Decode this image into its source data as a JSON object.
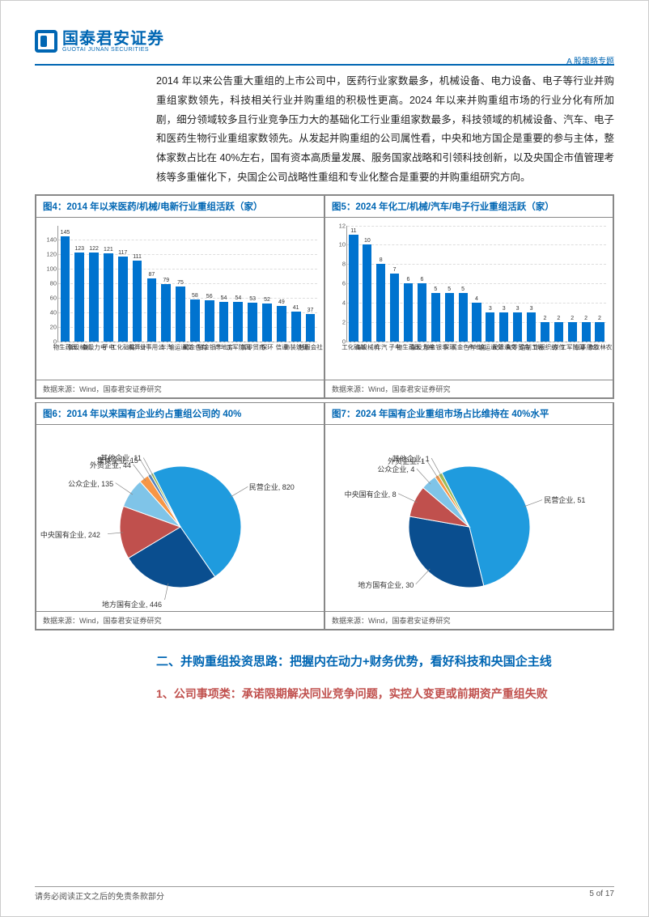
{
  "header": {
    "logo_cn": "国泰君安证券",
    "logo_en": "GUOTAI JUNAN SECURITIES",
    "doc_tag": "A 股策略专题"
  },
  "body_para": "2014 年以来公告重大重组的上市公司中，医药行业家数最多，机械设备、电力设备、电子等行业并购重组家数领先，科技相关行业并购重组的积极性更高。2024 年以来并购重组市场的行业分化有所加剧，细分领域较多且行业竞争压力大的基础化工行业重组家数最多，科技领域的机械设备、汽车、电子和医药生物行业重组家数领先。从发起并购重组的公司属性看，中央和地方国企是重要的参与主体，整体家数占比在 40%左右，国有资本高质量发展、服务国家战略和引领科技创新，以及央国企市值管理考核等多重催化下，央国企公司战略性重组和专业化整合是重要的并购重组研究方向。",
  "fig4": {
    "title": "图4：2014 年以来医药/机械/电新行业重组活跃（家）",
    "ylim": 160,
    "yticks": [
      0,
      20,
      40,
      60,
      80,
      100,
      120,
      140
    ],
    "bars": [
      {
        "l": "医药生物",
        "v": 145
      },
      {
        "l": "机械设备",
        "v": 123
      },
      {
        "l": "电力设备",
        "v": 122
      },
      {
        "l": "电子",
        "v": 121
      },
      {
        "l": "基础化工",
        "v": 117
      },
      {
        "l": "计算机",
        "v": 111
      },
      {
        "l": "公用事业",
        "v": 87
      },
      {
        "l": "汽车",
        "v": 79
      },
      {
        "l": "交通运输",
        "v": 75
      },
      {
        "l": "有色金属",
        "v": 58
      },
      {
        "l": "非银金融",
        "v": 56
      },
      {
        "l": "房地产",
        "v": 54
      },
      {
        "l": "国防军工",
        "v": 54
      },
      {
        "l": "商贸零售",
        "v": 53
      },
      {
        "l": "环保",
        "v": 52
      },
      {
        "l": "通信",
        "v": 49
      },
      {
        "l": "建筑装饰",
        "v": 41
      },
      {
        "l": "社会服务",
        "v": 37
      }
    ],
    "bar_color": "#0073cf",
    "src": "数据来源：Wind，国泰君安证券研究"
  },
  "fig5": {
    "title": "图5：2024 年化工/机械/汽车/电子行业重组活跃（家）",
    "ylim": 12,
    "yticks": [
      0,
      2,
      4,
      6,
      8,
      10,
      12
    ],
    "bars": [
      {
        "l": "基础化工",
        "v": 11
      },
      {
        "l": "机械设备",
        "v": 10
      },
      {
        "l": "汽车",
        "v": 8
      },
      {
        "l": "电子",
        "v": 7
      },
      {
        "l": "医药生物",
        "v": 6
      },
      {
        "l": "电力设备",
        "v": 6
      },
      {
        "l": "非银金融",
        "v": 5
      },
      {
        "l": "环保",
        "v": 5
      },
      {
        "l": "有色金属",
        "v": 5
      },
      {
        "l": "房地产",
        "v": 4
      },
      {
        "l": "交通运输",
        "v": 3
      },
      {
        "l": "交通建设",
        "v": 3
      },
      {
        "l": "商贸零售",
        "v": 3
      },
      {
        "l": "轻工制造",
        "v": 3
      },
      {
        "l": "纺织服饰",
        "v": 2
      },
      {
        "l": "传媒",
        "v": 2
      },
      {
        "l": "国防军工",
        "v": 2
      },
      {
        "l": "公用事业",
        "v": 2
      },
      {
        "l": "农林牧渔",
        "v": 2
      }
    ],
    "bar_color": "#0073cf",
    "src": "数据来源：Wind，国泰君安证券研究"
  },
  "fig6": {
    "title": "图6：2014 年以来国有企业约占重组公司的 40%",
    "slices": [
      {
        "l": "民营企业",
        "v": 820,
        "c": "#1f9bde"
      },
      {
        "l": "地方国有企业",
        "v": 446,
        "c": "#0a4e8f"
      },
      {
        "l": "中央国有企业",
        "v": 242,
        "c": "#c0504d"
      },
      {
        "l": "公众企业",
        "v": 135,
        "c": "#7fc4e8"
      },
      {
        "l": "外资企业",
        "v": 44,
        "c": "#f79646"
      },
      {
        "l": "集体企业",
        "v": 15,
        "c": "#4f81bd"
      },
      {
        "l": "其他企业",
        "v": 11,
        "c": "#9bbb59"
      }
    ],
    "src": "数据来源：Wind，国泰君安证券研究"
  },
  "fig7": {
    "title": "图7：2024 年国有企业重组市场占比维持在 40%水平",
    "slices": [
      {
        "l": "民营企业",
        "v": 51,
        "c": "#1f9bde"
      },
      {
        "l": "地方国有企业",
        "v": 30,
        "c": "#0a4e8f"
      },
      {
        "l": "中央国有企业",
        "v": 8,
        "c": "#c0504d"
      },
      {
        "l": "公众企业",
        "v": 4,
        "c": "#7fc4e8"
      },
      {
        "l": "外资企业",
        "v": 1,
        "c": "#f79646"
      },
      {
        "l": "其他企业",
        "v": 1,
        "c": "#9bbb59"
      }
    ],
    "src": "数据来源：Wind，国泰君安证券研究"
  },
  "h2": "二、并购重组投资思路：把握内在动力+财务优势，看好科技和央国企主线",
  "h3": "1、公司事项类：承诺限期解决同业竞争问题，实控人变更或前期资产重组失败",
  "footer_left": "请务必阅读正文之后的免责条款部分",
  "footer_right": "5 of 17"
}
